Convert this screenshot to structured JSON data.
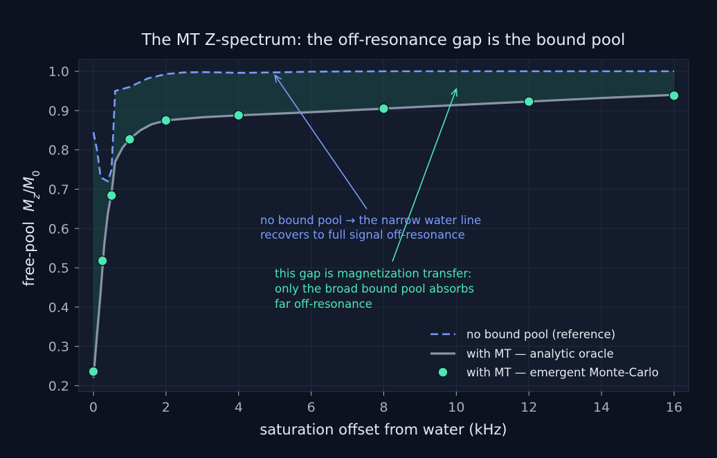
{
  "colors": {
    "background": "#0d1220",
    "plot_bg": "#131b2c",
    "grid": "#222c40",
    "axis_text": "#a9b0bf",
    "title_text": "#e6e9ef",
    "reference": "#7b9cff",
    "oracle": "#8a93a6",
    "monte_carlo": "#4ee6b4",
    "gap_fill": "#1f4a4a"
  },
  "chart_data": {
    "type": "line",
    "title": "The MT Z-spectrum: the off-resonance gap is the bound pool",
    "xlabel": "saturation offset from water  (kHz)",
    "ylabel_prefix": "free-pool",
    "ylabel_math": "Mz/M0",
    "xlim": [
      -0.4,
      16.4
    ],
    "ylim": [
      0.185,
      1.03
    ],
    "x_ticks": [
      0,
      2,
      4,
      6,
      8,
      10,
      12,
      14,
      16
    ],
    "x_tick_labels": [
      "0",
      "2",
      "4",
      "6",
      "8",
      "10",
      "12",
      "14",
      "16"
    ],
    "y_ticks": [
      0.2,
      0.3,
      0.4,
      0.5,
      0.6,
      0.7,
      0.8,
      0.9,
      1.0
    ],
    "y_tick_labels": [
      "0.2",
      "0.3",
      "0.4",
      "0.5",
      "0.6",
      "0.7",
      "0.8",
      "0.9",
      "1.0"
    ],
    "grid": true,
    "legend_position": "lower-right",
    "series": [
      {
        "name": "no bound pool (reference)",
        "style": "dashed",
        "x": [
          0,
          0.1,
          0.2,
          0.3,
          0.4,
          0.5,
          0.6,
          1.0,
          1.5,
          2.0,
          2.5,
          3.0,
          4.0,
          5.0,
          6.0,
          8.0,
          10.0,
          12.0,
          14.0,
          16.0
        ],
        "y": [
          0.845,
          0.8,
          0.73,
          0.725,
          0.72,
          0.75,
          0.95,
          0.96,
          0.982,
          0.993,
          0.997,
          0.998,
          0.996,
          0.997,
          0.999,
          1.0,
          1.0,
          1.0,
          1.0,
          1.0
        ]
      },
      {
        "name": "with MT — analytic oracle",
        "style": "solid",
        "x": [
          0,
          0.1,
          0.2,
          0.3,
          0.4,
          0.5,
          0.6,
          0.8,
          1.0,
          1.3,
          1.6,
          2.0,
          3.0,
          4.0,
          6.0,
          8.0,
          10.0,
          12.0,
          14.0,
          16.0
        ],
        "y": [
          0.22,
          0.33,
          0.44,
          0.56,
          0.64,
          0.69,
          0.77,
          0.805,
          0.828,
          0.85,
          0.865,
          0.875,
          0.883,
          0.888,
          0.896,
          0.905,
          0.914,
          0.923,
          0.932,
          0.94
        ]
      },
      {
        "name": "with MT — emergent Monte-Carlo",
        "style": "markers",
        "x": [
          0,
          0.25,
          0.5,
          1.0,
          2.0,
          4.0,
          8.0,
          12.0,
          16.0
        ],
        "y": [
          0.236,
          0.518,
          0.684,
          0.827,
          0.875,
          0.888,
          0.905,
          0.923,
          0.938
        ]
      }
    ],
    "annotations": [
      {
        "id": "reference-note",
        "lines": [
          "no bound pool → the narrow water line",
          "recovers to full signal off-resonance"
        ],
        "arrow_to": [
          5.0,
          0.99
        ]
      },
      {
        "id": "gap-note",
        "lines": [
          "this gap is magnetization transfer:",
          "only the broad bound pool absorbs",
          "far off-resonance"
        ],
        "arrow_to": [
          10.0,
          0.955
        ]
      }
    ]
  }
}
